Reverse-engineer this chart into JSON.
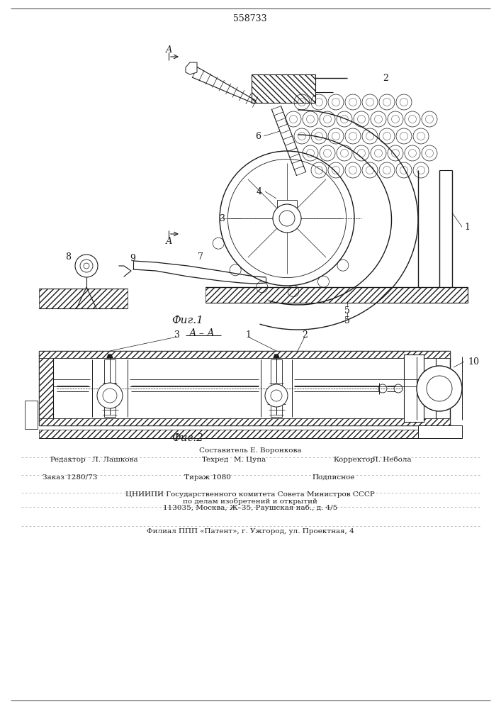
{
  "patent_number": "558733",
  "fig1_caption": "Фиг.1",
  "fig2_caption": "Фиг.2",
  "section_label": "А – А",
  "arrow_label": "А",
  "footer": {
    "line1": "Составитель Е. Воронкова",
    "col1_label": "Редактор",
    "col1_val": "Л. Лашкова",
    "col2_label": "Техред",
    "col2_val": "М. Цупа",
    "col3_label": "Корректор",
    "col3_val": "Л. Небола",
    "order_label": "Заказ 1280/73",
    "tirazh_label": "Тираж 1080",
    "podpisnoe": "Подписное",
    "cniipи1": "ЦНИИПИ Государственного комитета Совета Министров СССР",
    "cniipи2": "по делам изобретений и открытий",
    "cniipи3": "113035, Москва, Ж–35, Раушская наб., д. 4/5",
    "filial": "Филиал ППП «Патент», г. Ужгород, ул. Проектная, 4"
  },
  "bg_color": "#ffffff"
}
